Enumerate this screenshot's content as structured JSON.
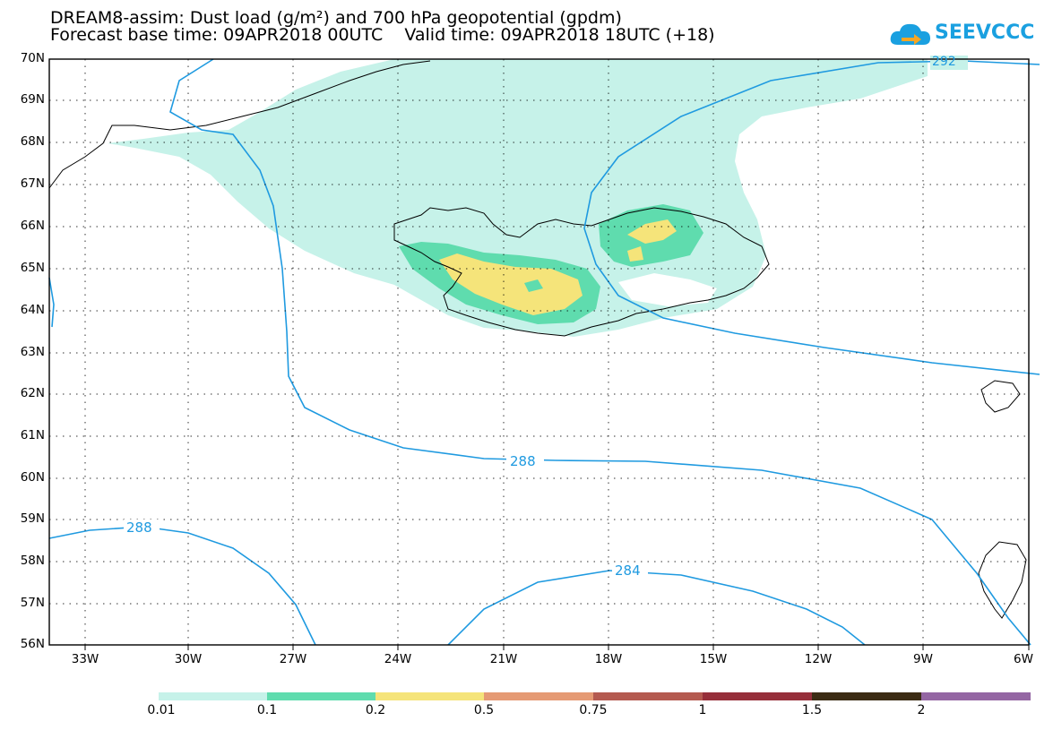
{
  "title": {
    "line1": "DREAM8-assim: Dust load (g/m²) and 700 hPa geopotential (gpdm)",
    "line2": "Forecast base time: 09APR2018 00UTC    Valid time: 09APR2018 18UTC (+18)"
  },
  "logo": {
    "text": "SEEVCCC",
    "icon": "cloud-arrow-icon"
  },
  "axes": {
    "lat_labels": [
      "70N",
      "69N",
      "68N",
      "67N",
      "66N",
      "65N",
      "64N",
      "63N",
      "62N",
      "61N",
      "60N",
      "59N",
      "58N",
      "57N",
      "56N"
    ],
    "lon_labels": [
      "33W",
      "30W",
      "27W",
      "24W",
      "21W",
      "18W",
      "15W",
      "12W",
      "9W",
      "6W"
    ]
  },
  "contour_labels": [
    "292",
    "288",
    "288",
    "284"
  ],
  "colorbar": {
    "labels": [
      "0.01",
      "0.1",
      "0.2",
      "0.5",
      "0.75",
      "1",
      "1.5",
      "2"
    ],
    "colors": [
      "#c6f2e9",
      "#5fdcae",
      "#f5e47a",
      "#e59a74",
      "#b45a50",
      "#962f3a",
      "#6e0e2a",
      "#3c2c14",
      "#9466a3"
    ]
  },
  "colors": {
    "contour": "#1f9ae0",
    "coast": "#000000",
    "frame": "#000000"
  }
}
